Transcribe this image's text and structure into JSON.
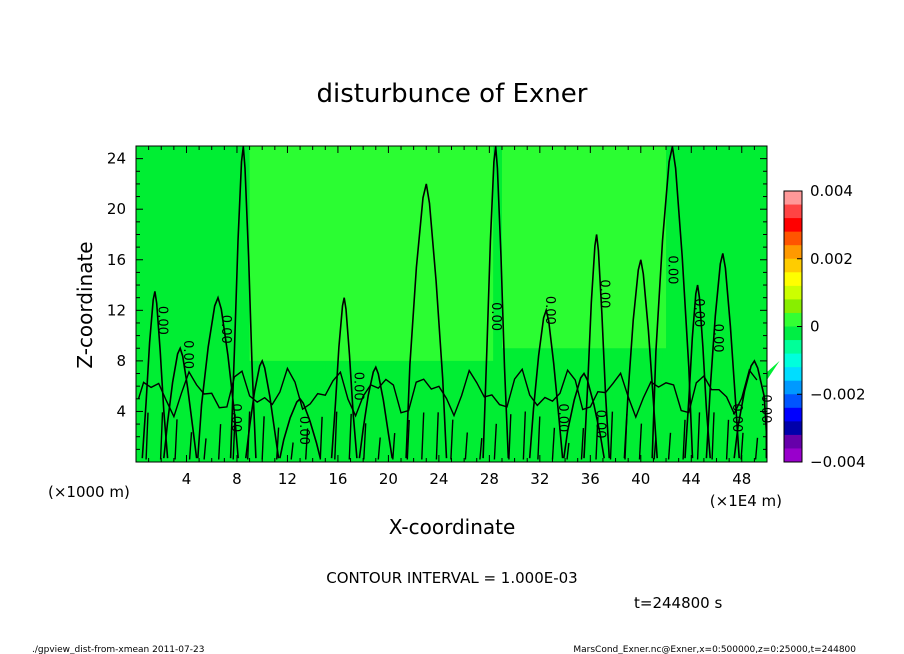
{
  "chart_data": {
    "type": "heatmap",
    "title": "disturbunce of Exner",
    "xlabel": "X-coordinate",
    "ylabel": "Z-coordinate",
    "x_unit_left": "(×1000 m)",
    "x_unit_right": "(×1E4 m)",
    "xlim": [
      0,
      50
    ],
    "ylim": [
      0,
      25
    ],
    "x_ticks": [
      "4",
      "8",
      "12",
      "16",
      "20",
      "24",
      "28",
      "32",
      "36",
      "40",
      "44",
      "48"
    ],
    "x_tick_values": [
      4,
      8,
      12,
      16,
      20,
      24,
      28,
      32,
      36,
      40,
      44,
      48
    ],
    "y_ticks": [
      "4",
      "8",
      "12",
      "16",
      "20",
      "24"
    ],
    "y_tick_values": [
      4,
      8,
      12,
      16,
      20,
      24
    ],
    "colorbar": {
      "range": [
        -0.004,
        0.004
      ],
      "tick_labels": [
        "0.004",
        "0.002",
        "0",
        "−0.002",
        "−0.004"
      ],
      "tick_values": [
        0.004,
        0.002,
        0,
        -0.002,
        -0.004
      ],
      "colors": [
        "#ff9999",
        "#ff4444",
        "#ff0000",
        "#ff5500",
        "#ff9900",
        "#ffcc00",
        "#ffff00",
        "#ccff00",
        "#88ee00",
        "#33ff33",
        "#00ee44",
        "#00ff99",
        "#00ffdd",
        "#00ddff",
        "#0099ff",
        "#0055ff",
        "#0000ff",
        "#0000aa",
        "#6600aa",
        "#9900cc"
      ]
    },
    "field": {
      "background_color": "#00ee33",
      "dominant_color": "#33ff33",
      "dominant_value": 0.0003,
      "contour_label": "0.00",
      "contour_peaks": [
        [
          1.5,
          13.5
        ],
        [
          3.5,
          9.0
        ],
        [
          6.5,
          13.0
        ],
        [
          8.5,
          25.0
        ],
        [
          10.0,
          8.0
        ],
        [
          13.0,
          5.0
        ],
        [
          16.5,
          13.0
        ],
        [
          19.0,
          7.5
        ],
        [
          23.0,
          22.0
        ],
        [
          28.5,
          25.0
        ],
        [
          32.5,
          12.0
        ],
        [
          35.5,
          7.0
        ],
        [
          36.5,
          18.0
        ],
        [
          40.0,
          16.0
        ],
        [
          42.5,
          25.0
        ],
        [
          44.5,
          14.0
        ],
        [
          46.5,
          16.5
        ],
        [
          49.0,
          8.0
        ]
      ]
    },
    "contour_interval_text": "CONTOUR INTERVAL = 1.000E-03",
    "time_text": "t=244800 s",
    "footer_left": "./gpview_dist-from-xmean   2011-07-23",
    "footer_right": "MarsCond_Exner.nc@Exner,x=0:500000,z=0:25000,t=244800"
  }
}
